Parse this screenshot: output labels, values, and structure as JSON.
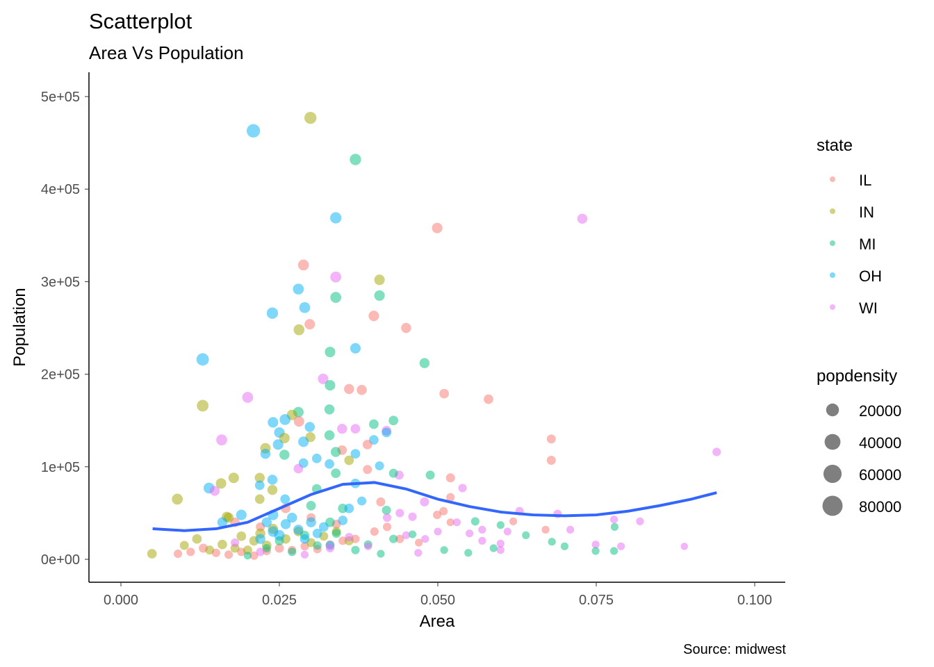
{
  "chart_data": {
    "type": "scatter",
    "title": "Scatterplot",
    "subtitle": "Area Vs Population",
    "xlabel": "Area",
    "ylabel": "Population",
    "caption": "Source: midwest",
    "xlim": [
      -0.0025,
      0.1045
    ],
    "ylim": [
      -25000,
      525000
    ],
    "x_ticks": [
      0,
      0.025,
      0.05,
      0.075,
      0.1
    ],
    "x_tick_labels": [
      "0.000",
      "0.025",
      "0.050",
      "0.075",
      "0.100"
    ],
    "y_ticks": [
      0,
      100000,
      200000,
      300000,
      400000,
      500000
    ],
    "y_tick_labels": [
      "0e+00",
      "1e+05",
      "2e+05",
      "3e+05",
      "4e+05",
      "5e+05"
    ],
    "grid": false,
    "legend_position": "right",
    "color_legend": {
      "title": "state",
      "entries": [
        {
          "label": "IL",
          "color": "#F8766D"
        },
        {
          "label": "IN",
          "color": "#A3A500"
        },
        {
          "label": "MI",
          "color": "#00BF7D"
        },
        {
          "label": "OH",
          "color": "#00B0F6"
        },
        {
          "label": "WI",
          "color": "#E76BF3"
        }
      ]
    },
    "size_legend": {
      "title": "popdensity",
      "values": [
        20000,
        40000,
        60000,
        80000
      ],
      "labels": [
        "20000",
        "40000",
        "60000",
        "80000"
      ]
    },
    "point_alpha": 0.5,
    "smooth_color": "#3366FF",
    "smooth": {
      "x": [
        0.005,
        0.01,
        0.015,
        0.02,
        0.025,
        0.03,
        0.035,
        0.04,
        0.045,
        0.05,
        0.055,
        0.06,
        0.065,
        0.07,
        0.075,
        0.08,
        0.085,
        0.09,
        0.094
      ],
      "y": [
        33000,
        31000,
        33000,
        40000,
        55000,
        70000,
        81000,
        83000,
        76000,
        65000,
        57000,
        51000,
        48000,
        47000,
        48000,
        52000,
        58000,
        65000,
        72000
      ]
    },
    "points": [
      [
        "OH",
        0.0209,
        463000,
        80000
      ],
      [
        "IN",
        0.0299,
        477000,
        60000
      ],
      [
        "MI",
        0.037,
        432000,
        50000
      ],
      [
        "OH",
        0.0339,
        369000,
        50000
      ],
      [
        "IL",
        0.0499,
        358000,
        40000
      ],
      [
        "WI",
        0.0728,
        368000,
        35000
      ],
      [
        "IL",
        0.0288,
        318000,
        45000
      ],
      [
        "WI",
        0.0339,
        305000,
        45000
      ],
      [
        "IN",
        0.0408,
        302000,
        40000
      ],
      [
        "OH",
        0.028,
        292000,
        45000
      ],
      [
        "MI",
        0.0339,
        283000,
        45000
      ],
      [
        "MI",
        0.0408,
        285000,
        40000
      ],
      [
        "OH",
        0.029,
        272000,
        45000
      ],
      [
        "OH",
        0.0239,
        266000,
        50000
      ],
      [
        "IL",
        0.0298,
        254000,
        40000
      ],
      [
        "IL",
        0.0399,
        263000,
        40000
      ],
      [
        "IL",
        0.045,
        250000,
        35000
      ],
      [
        "IN",
        0.0281,
        248000,
        45000
      ],
      [
        "OH",
        0.037,
        228000,
        40000
      ],
      [
        "MI",
        0.033,
        224000,
        40000
      ],
      [
        "MI",
        0.0479,
        212000,
        35000
      ],
      [
        "OH",
        0.0129,
        216000,
        65000
      ],
      [
        "WI",
        0.0319,
        195000,
        40000
      ],
      [
        "WI",
        0.02,
        175000,
        45000
      ],
      [
        "MI",
        0.033,
        188000,
        40000
      ],
      [
        "IL",
        0.036,
        184000,
        35000
      ],
      [
        "IL",
        0.038,
        183000,
        35000
      ],
      [
        "IL",
        0.051,
        179000,
        30000
      ],
      [
        "IL",
        0.058,
        173000,
        30000
      ],
      [
        "IN",
        0.0129,
        166000,
        55000
      ],
      [
        "MI",
        0.0329,
        162000,
        35000
      ],
      [
        "MI",
        0.028,
        159000,
        40000
      ],
      [
        "IN",
        0.027,
        156000,
        40000
      ],
      [
        "IL",
        0.0281,
        149000,
        40000
      ],
      [
        "OH",
        0.0259,
        151000,
        45000
      ],
      [
        "OH",
        0.024,
        148000,
        40000
      ],
      [
        "MI",
        0.043,
        150000,
        30000
      ],
      [
        "MI",
        0.0399,
        146000,
        30000
      ],
      [
        "WI",
        0.0349,
        141000,
        35000
      ],
      [
        "WI",
        0.037,
        141000,
        30000
      ],
      [
        "WI",
        0.0419,
        139000,
        30000
      ],
      [
        "OH",
        0.0419,
        137000,
        30000
      ],
      [
        "OH",
        0.025,
        137000,
        40000
      ],
      [
        "OH",
        0.0298,
        143000,
        35000
      ],
      [
        "MI",
        0.0329,
        134000,
        35000
      ],
      [
        "IN",
        0.0299,
        132000,
        35000
      ],
      [
        "IN",
        0.0258,
        131000,
        40000
      ],
      [
        "WI",
        0.0159,
        129000,
        45000
      ],
      [
        "OH",
        0.0288,
        127000,
        40000
      ],
      [
        "OH",
        0.0399,
        129000,
        30000
      ],
      [
        "IL",
        0.0679,
        130000,
        25000
      ],
      [
        "IL",
        0.0389,
        124000,
        30000
      ],
      [
        "OH",
        0.0248,
        124000,
        40000
      ],
      [
        "IN",
        0.0228,
        120000,
        40000
      ],
      [
        "IL",
        0.0349,
        118000,
        30000
      ],
      [
        "MI",
        0.0339,
        116000,
        35000
      ],
      [
        "OH",
        0.037,
        114000,
        30000
      ],
      [
        "WI",
        0.094,
        116000,
        20000
      ],
      [
        "MI",
        0.0258,
        113000,
        35000
      ],
      [
        "OH",
        0.0228,
        114000,
        35000
      ],
      [
        "OH",
        0.0309,
        109000,
        30000
      ],
      [
        "IN",
        0.036,
        107000,
        30000
      ],
      [
        "IL",
        0.0679,
        107000,
        25000
      ],
      [
        "OH",
        0.0329,
        103000,
        30000
      ],
      [
        "OH",
        0.0288,
        104000,
        30000
      ],
      [
        "OH",
        0.0408,
        101000,
        25000
      ],
      [
        "IL",
        0.0389,
        97000,
        25000
      ],
      [
        "MI",
        0.0339,
        93000,
        30000
      ],
      [
        "WI",
        0.028,
        98000,
        30000
      ],
      [
        "IN",
        0.0178,
        88000,
        40000
      ],
      [
        "IN",
        0.0219,
        88000,
        35000
      ],
      [
        "IL",
        0.052,
        88000,
        25000
      ],
      [
        "MI",
        0.0488,
        91000,
        25000
      ],
      [
        "WI",
        0.0439,
        91000,
        25000
      ],
      [
        "MI",
        0.043,
        93000,
        25000
      ],
      [
        "OH",
        0.0239,
        86000,
        35000
      ],
      [
        "OH",
        0.0139,
        77000,
        45000
      ],
      [
        "IN",
        0.0158,
        82000,
        40000
      ],
      [
        "WI",
        0.0148,
        74000,
        35000
      ],
      [
        "WI",
        0.0539,
        77000,
        20000
      ],
      [
        "OH",
        0.0219,
        80000,
        30000
      ],
      [
        "OH",
        0.037,
        82000,
        30000
      ],
      [
        "MI",
        0.0309,
        76000,
        30000
      ],
      [
        "IN",
        0.0239,
        75000,
        35000
      ],
      [
        "IN",
        0.0089,
        65000,
        45000
      ],
      [
        "IN",
        0.0219,
        65000,
        30000
      ],
      [
        "IL",
        0.041,
        62000,
        25000
      ],
      [
        "OH",
        0.0259,
        65000,
        30000
      ],
      [
        "OH",
        0.038,
        63000,
        25000
      ],
      [
        "WI",
        0.0479,
        62000,
        25000
      ],
      [
        "IL",
        0.052,
        67000,
        20000
      ],
      [
        "MI",
        0.0419,
        53000,
        25000
      ],
      [
        "IL",
        0.0509,
        52000,
        20000
      ],
      [
        "WI",
        0.0629,
        52000,
        20000
      ],
      [
        "WI",
        0.0689,
        49000,
        20000
      ],
      [
        "WI",
        0.044,
        50000,
        20000
      ],
      [
        "WI",
        0.046,
        46000,
        20000
      ],
      [
        "IL",
        0.0499,
        48000,
        20000
      ],
      [
        "IN",
        0.0167,
        46000,
        35000
      ],
      [
        "WI",
        0.0778,
        43000,
        15000
      ],
      [
        "WI",
        0.0819,
        41000,
        15000
      ],
      [
        "MI",
        0.0559,
        41000,
        20000
      ],
      [
        "MI",
        0.0779,
        35000,
        15000
      ],
      [
        "IL",
        0.0619,
        41000,
        15000
      ],
      [
        "MI",
        0.0599,
        37000,
        15000
      ],
      [
        "IL",
        0.067,
        32000,
        15000
      ],
      [
        "WI",
        0.0709,
        32000,
        15000
      ],
      [
        "MI",
        0.0639,
        26000,
        15000
      ],
      [
        "MI",
        0.068,
        19000,
        15000
      ],
      [
        "MI",
        0.07,
        14000,
        15000
      ],
      [
        "WI",
        0.0749,
        16000,
        15000
      ],
      [
        "WI",
        0.0789,
        14000,
        15000
      ],
      [
        "WI",
        0.0889,
        14000,
        12000
      ],
      [
        "MI",
        0.0749,
        9000,
        15000
      ],
      [
        "MI",
        0.0778,
        9000,
        15000
      ],
      [
        "IN",
        0.0049,
        6000,
        30000
      ],
      [
        "MI",
        0.0548,
        7000,
        15000
      ],
      [
        "WI",
        0.0599,
        10000,
        15000
      ],
      [
        "MI",
        0.0588,
        12000,
        15000
      ],
      [
        "WI",
        0.0469,
        7000,
        15000
      ],
      [
        "MI",
        0.051,
        10000,
        15000
      ],
      [
        "WI",
        0.057,
        20000,
        15000
      ],
      [
        "WI",
        0.0599,
        17000,
        15000
      ],
      [
        "MI",
        0.046,
        27000,
        15000
      ],
      [
        "IL",
        0.009,
        6000,
        20000
      ],
      [
        "IL",
        0.011,
        8000,
        20000
      ],
      [
        "IL",
        0.013,
        12000,
        25000
      ],
      [
        "IL",
        0.015,
        7000,
        20000
      ],
      [
        "IL",
        0.017,
        5000,
        20000
      ],
      [
        "IL",
        0.019,
        8000,
        20000
      ],
      [
        "IL",
        0.021,
        4000,
        20000
      ],
      [
        "IL",
        0.023,
        9000,
        20000
      ],
      [
        "IL",
        0.025,
        12000,
        25000
      ],
      [
        "IL",
        0.027,
        10000,
        20000
      ],
      [
        "IL",
        0.029,
        14000,
        20000
      ],
      [
        "IL",
        0.031,
        11000,
        20000
      ],
      [
        "IL",
        0.033,
        16000,
        20000
      ],
      [
        "IL",
        0.035,
        20000,
        20000
      ],
      [
        "IL",
        0.037,
        22000,
        20000
      ],
      [
        "IL",
        0.04,
        30000,
        20000
      ],
      [
        "IL",
        0.042,
        35000,
        20000
      ],
      [
        "IL",
        0.044,
        22000,
        20000
      ],
      [
        "IL",
        0.047,
        18000,
        15000
      ],
      [
        "IL",
        0.052,
        40000,
        15000
      ],
      [
        "IL",
        0.026,
        55000,
        30000
      ],
      [
        "IL",
        0.018,
        40000,
        30000
      ],
      [
        "IL",
        0.022,
        35000,
        25000
      ],
      [
        "IL",
        0.03,
        45000,
        25000
      ],
      [
        "IL",
        0.034,
        38000,
        25000
      ],
      [
        "IN",
        0.01,
        15000,
        25000
      ],
      [
        "IN",
        0.012,
        22000,
        30000
      ],
      [
        "IN",
        0.014,
        10000,
        25000
      ],
      [
        "IN",
        0.016,
        16000,
        30000
      ],
      [
        "IN",
        0.018,
        12000,
        25000
      ],
      [
        "IN",
        0.019,
        25000,
        30000
      ],
      [
        "IN",
        0.021,
        20000,
        30000
      ],
      [
        "IN",
        0.022,
        28000,
        35000
      ],
      [
        "IN",
        0.023,
        15000,
        30000
      ],
      [
        "IN",
        0.024,
        33000,
        35000
      ],
      [
        "IN",
        0.026,
        22000,
        30000
      ],
      [
        "IN",
        0.028,
        30000,
        30000
      ],
      [
        "IN",
        0.03,
        18000,
        25000
      ],
      [
        "IN",
        0.032,
        25000,
        25000
      ],
      [
        "IN",
        0.034,
        30000,
        25000
      ],
      [
        "IN",
        0.036,
        20000,
        25000
      ],
      [
        "IN",
        0.02,
        10000,
        25000
      ],
      [
        "IN",
        0.017,
        45000,
        35000
      ],
      [
        "MI",
        0.02,
        4000,
        15000
      ],
      [
        "MI",
        0.023,
        12000,
        20000
      ],
      [
        "MI",
        0.025,
        20000,
        25000
      ],
      [
        "MI",
        0.027,
        8000,
        20000
      ],
      [
        "MI",
        0.029,
        26000,
        25000
      ],
      [
        "MI",
        0.031,
        15000,
        20000
      ],
      [
        "MI",
        0.033,
        40000,
        30000
      ],
      [
        "MI",
        0.035,
        55000,
        30000
      ],
      [
        "MI",
        0.037,
        10000,
        20000
      ],
      [
        "MI",
        0.039,
        16000,
        20000
      ],
      [
        "MI",
        0.041,
        6000,
        15000
      ],
      [
        "MI",
        0.043,
        22000,
        20000
      ],
      [
        "MI",
        0.034,
        28000,
        25000
      ],
      [
        "MI",
        0.03,
        58000,
        30000
      ],
      [
        "OH",
        0.022,
        22000,
        35000
      ],
      [
        "OH",
        0.023,
        40000,
        35000
      ],
      [
        "OH",
        0.024,
        30000,
        40000
      ],
      [
        "OH",
        0.025,
        26000,
        40000
      ],
      [
        "OH",
        0.026,
        38000,
        35000
      ],
      [
        "OH",
        0.027,
        45000,
        35000
      ],
      [
        "OH",
        0.028,
        32000,
        35000
      ],
      [
        "OH",
        0.029,
        22000,
        30000
      ],
      [
        "OH",
        0.03,
        40000,
        35000
      ],
      [
        "OH",
        0.031,
        28000,
        30000
      ],
      [
        "OH",
        0.032,
        35000,
        30000
      ],
      [
        "OH",
        0.033,
        15000,
        25000
      ],
      [
        "OH",
        0.035,
        42000,
        30000
      ],
      [
        "OH",
        0.036,
        55000,
        30000
      ],
      [
        "OH",
        0.024,
        48000,
        40000
      ],
      [
        "OH",
        0.016,
        40000,
        35000
      ],
      [
        "OH",
        0.019,
        48000,
        40000
      ],
      [
        "WI",
        0.018,
        18000,
        20000
      ],
      [
        "WI",
        0.022,
        8000,
        20000
      ],
      [
        "WI",
        0.029,
        5000,
        15000
      ],
      [
        "WI",
        0.033,
        12000,
        20000
      ],
      [
        "WI",
        0.036,
        24000,
        20000
      ],
      [
        "WI",
        0.039,
        14000,
        15000
      ],
      [
        "WI",
        0.042,
        45000,
        20000
      ],
      [
        "WI",
        0.045,
        26000,
        15000
      ],
      [
        "WI",
        0.048,
        22000,
        15000
      ],
      [
        "WI",
        0.05,
        30000,
        15000
      ],
      [
        "WI",
        0.053,
        40000,
        15000
      ],
      [
        "WI",
        0.055,
        28000,
        15000
      ],
      [
        "WI",
        0.057,
        32000,
        15000
      ],
      [
        "WI",
        0.061,
        30000,
        15000
      ]
    ]
  }
}
